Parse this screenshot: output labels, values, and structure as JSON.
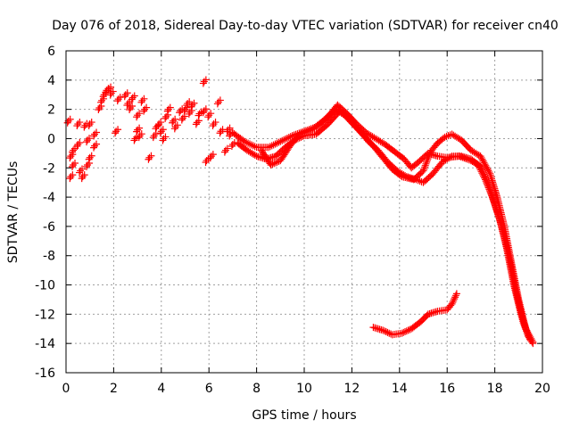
{
  "chart_data": {
    "type": "scatter",
    "title": "Day 076 of 2018, Sidereal Day-to-day VTEC variation (SDTVAR) for receiver cn40",
    "xlabel": "GPS time / hours",
    "ylabel": "SDTVAR / TECUs",
    "xlim": [
      0,
      20
    ],
    "ylim": [
      -16,
      6
    ],
    "xticks": [
      0,
      2,
      4,
      6,
      8,
      10,
      12,
      14,
      16,
      18,
      20
    ],
    "yticks": [
      -16,
      -14,
      -12,
      -10,
      -8,
      -6,
      -4,
      -2,
      0,
      2,
      4,
      6
    ],
    "grid": true,
    "marker": "plus",
    "color": "#ff0000",
    "series": [
      {
        "name": "main-track-upper",
        "points": [
          [
            7.0,
            0.4
          ],
          [
            7.5,
            -0.2
          ],
          [
            8.0,
            -0.6
          ],
          [
            8.5,
            -0.6
          ],
          [
            9.0,
            -0.2
          ],
          [
            9.5,
            0.2
          ],
          [
            10.0,
            0.5
          ],
          [
            10.5,
            0.8
          ],
          [
            11.0,
            1.5
          ],
          [
            11.4,
            2.3
          ],
          [
            11.8,
            1.7
          ],
          [
            12.2,
            1.0
          ],
          [
            12.6,
            0.4
          ],
          [
            13.0,
            0.0
          ],
          [
            13.4,
            -0.4
          ],
          [
            13.8,
            -0.9
          ],
          [
            14.2,
            -1.4
          ],
          [
            14.5,
            -2.0
          ],
          [
            14.8,
            -1.6
          ],
          [
            15.2,
            -1.0
          ],
          [
            15.6,
            -1.2
          ],
          [
            16.0,
            -1.3
          ],
          [
            16.5,
            -1.2
          ],
          [
            17.0,
            -1.5
          ],
          [
            17.3,
            -1.8
          ],
          [
            17.6,
            -2.8
          ],
          [
            17.9,
            -4.0
          ],
          [
            18.2,
            -5.5
          ],
          [
            18.5,
            -7.5
          ],
          [
            18.8,
            -10.0
          ],
          [
            19.1,
            -12.0
          ],
          [
            19.4,
            -13.5
          ],
          [
            19.6,
            -14.0
          ]
        ]
      },
      {
        "name": "main-track-lower",
        "points": [
          [
            7.2,
            -0.3
          ],
          [
            7.6,
            -0.8
          ],
          [
            8.0,
            -1.2
          ],
          [
            8.4,
            -1.4
          ],
          [
            8.8,
            -1.2
          ],
          [
            9.2,
            -0.6
          ],
          [
            9.6,
            -0.1
          ],
          [
            10.0,
            0.2
          ],
          [
            10.5,
            0.3
          ],
          [
            11.0,
            1.0
          ],
          [
            11.5,
            1.9
          ],
          [
            11.9,
            1.4
          ],
          [
            12.3,
            0.6
          ],
          [
            12.7,
            -0.2
          ],
          [
            13.1,
            -0.8
          ],
          [
            13.5,
            -1.6
          ],
          [
            13.9,
            -2.2
          ],
          [
            14.3,
            -2.6
          ],
          [
            14.7,
            -2.8
          ],
          [
            15.0,
            -3.0
          ],
          [
            15.4,
            -2.4
          ],
          [
            15.8,
            -1.6
          ],
          [
            16.2,
            -1.2
          ],
          [
            16.6,
            -1.2
          ],
          [
            17.0,
            -1.4
          ],
          [
            17.4,
            -1.9
          ],
          [
            17.7,
            -3.0
          ],
          [
            18.0,
            -4.5
          ],
          [
            18.3,
            -6.0
          ],
          [
            18.6,
            -8.0
          ],
          [
            18.9,
            -10.5
          ],
          [
            19.2,
            -12.6
          ],
          [
            19.5,
            -13.8
          ]
        ]
      },
      {
        "name": "main-track-third",
        "points": [
          [
            8.2,
            -0.8
          ],
          [
            8.6,
            -1.8
          ],
          [
            9.0,
            -1.5
          ],
          [
            9.4,
            -0.5
          ],
          [
            9.8,
            0.3
          ],
          [
            10.3,
            0.6
          ],
          [
            10.8,
            1.2
          ],
          [
            11.3,
            2.0
          ],
          [
            11.7,
            1.6
          ],
          [
            12.1,
            0.9
          ],
          [
            12.5,
            0.2
          ],
          [
            12.9,
            -0.5
          ],
          [
            13.3,
            -1.3
          ],
          [
            13.7,
            -2.1
          ],
          [
            14.1,
            -2.6
          ],
          [
            14.6,
            -2.8
          ],
          [
            15.0,
            -2.2
          ],
          [
            15.3,
            -0.9
          ],
          [
            15.6,
            -0.3
          ],
          [
            15.9,
            0.1
          ],
          [
            16.2,
            0.3
          ],
          [
            16.6,
            -0.1
          ],
          [
            17.0,
            -0.8
          ],
          [
            17.4,
            -1.2
          ],
          [
            17.8,
            -2.4
          ],
          [
            18.1,
            -4.0
          ],
          [
            18.4,
            -6.0
          ],
          [
            18.7,
            -8.5
          ],
          [
            19.0,
            -11.0
          ],
          [
            19.3,
            -13.0
          ],
          [
            19.6,
            -13.9
          ]
        ]
      },
      {
        "name": "isolated-segment",
        "points": [
          [
            12.9,
            -12.9
          ],
          [
            13.3,
            -13.1
          ],
          [
            13.7,
            -13.4
          ],
          [
            14.1,
            -13.3
          ],
          [
            14.5,
            -13.0
          ],
          [
            14.9,
            -12.5
          ],
          [
            15.2,
            -12.0
          ],
          [
            15.6,
            -11.8
          ],
          [
            16.0,
            -11.7
          ],
          [
            16.2,
            -11.3
          ],
          [
            16.4,
            -10.6
          ]
        ]
      },
      {
        "name": "scattered-early",
        "points": [
          [
            0.1,
            1.2
          ],
          [
            0.2,
            -1.2
          ],
          [
            0.2,
            -2.6
          ],
          [
            0.3,
            -1.8
          ],
          [
            0.3,
            -0.8
          ],
          [
            0.5,
            -0.4
          ],
          [
            0.5,
            1.0
          ],
          [
            0.6,
            -2.2
          ],
          [
            0.7,
            -2.6
          ],
          [
            0.8,
            0.9
          ],
          [
            0.9,
            -1.8
          ],
          [
            0.9,
            -0.1
          ],
          [
            1.0,
            1.0
          ],
          [
            1.0,
            -1.3
          ],
          [
            1.2,
            0.3
          ],
          [
            1.2,
            -0.5
          ],
          [
            1.4,
            2.1
          ],
          [
            1.5,
            2.6
          ],
          [
            1.6,
            3.0
          ],
          [
            1.7,
            3.3
          ],
          [
            1.8,
            3.4
          ],
          [
            1.9,
            3.1
          ],
          [
            2.1,
            0.5
          ],
          [
            2.2,
            2.7
          ],
          [
            2.5,
            3.0
          ],
          [
            2.6,
            2.4
          ],
          [
            2.7,
            2.1
          ],
          [
            2.8,
            2.8
          ],
          [
            2.9,
            0.0
          ],
          [
            3.0,
            1.6
          ],
          [
            3.0,
            0.6
          ],
          [
            3.1,
            0.2
          ],
          [
            3.2,
            2.6
          ],
          [
            3.3,
            2.0
          ],
          [
            3.5,
            -1.3
          ],
          [
            3.7,
            0.2
          ],
          [
            3.8,
            0.8
          ],
          [
            3.9,
            1.0
          ],
          [
            4.0,
            0.5
          ],
          [
            4.1,
            0.0
          ],
          [
            4.2,
            1.5
          ],
          [
            4.3,
            2.0
          ],
          [
            4.5,
            1.2
          ],
          [
            4.6,
            0.8
          ],
          [
            4.8,
            1.9
          ],
          [
            4.9,
            1.4
          ],
          [
            5.0,
            2.0
          ],
          [
            5.1,
            2.4
          ],
          [
            5.2,
            1.8
          ],
          [
            5.3,
            2.3
          ],
          [
            5.5,
            1.1
          ],
          [
            5.6,
            1.7
          ],
          [
            5.8,
            3.9
          ],
          [
            5.8,
            1.9
          ],
          [
            5.9,
            -1.5
          ],
          [
            6.0,
            1.6
          ],
          [
            6.1,
            -1.2
          ],
          [
            6.2,
            1.0
          ],
          [
            6.4,
            2.5
          ],
          [
            6.5,
            0.5
          ],
          [
            6.7,
            -0.8
          ],
          [
            6.8,
            0.6
          ],
          [
            6.9,
            0.3
          ],
          [
            7.0,
            -0.4
          ]
        ]
      }
    ]
  }
}
